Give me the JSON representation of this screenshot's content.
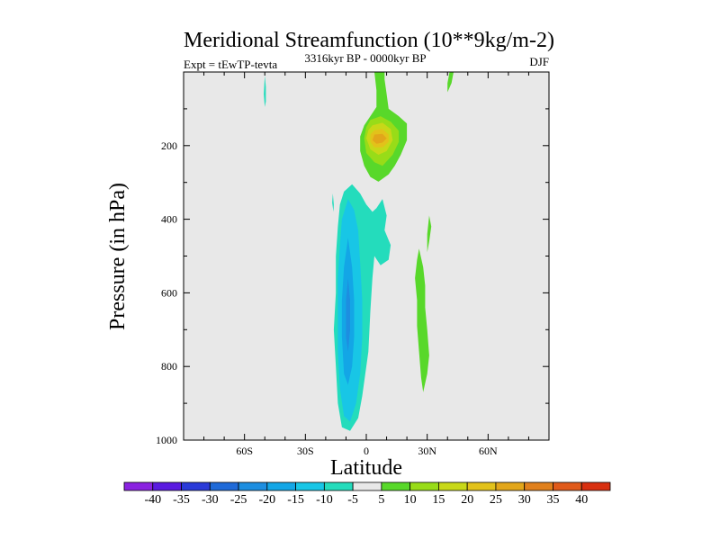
{
  "chart_data": {
    "type": "contour",
    "title": "Meridional Streamfunction (10**9kg/m-2)",
    "left_label": "Expt = tEwTP-tevta",
    "center_label": "3316kyr BP - 0000kyr BP",
    "right_label": "DJF",
    "xlabel": "Latitude",
    "ylabel": "Pressure (in hPa)",
    "xlim": [
      -90,
      90
    ],
    "ylim": [
      0,
      1000
    ],
    "y_inverted": true,
    "x_ticks": [
      {
        "value": -60,
        "label": "60S"
      },
      {
        "value": -30,
        "label": "30S"
      },
      {
        "value": 0,
        "label": "0"
      },
      {
        "value": 30,
        "label": "30N"
      },
      {
        "value": 60,
        "label": "60N"
      }
    ],
    "y_ticks": [
      {
        "value": 200,
        "label": "200"
      },
      {
        "value": 400,
        "label": "400"
      },
      {
        "value": 600,
        "label": "600"
      },
      {
        "value": 800,
        "label": "800"
      },
      {
        "value": 1000,
        "label": "1000"
      }
    ],
    "background_color": "#e8e8e8",
    "colorbar": {
      "levels": [
        -40,
        -35,
        -30,
        -25,
        -20,
        -15,
        -10,
        -5,
        5,
        10,
        15,
        20,
        25,
        30,
        35,
        40
      ],
      "level_labels": [
        "-40",
        "-35",
        "-30",
        "-25",
        "-20",
        "-15",
        "-10",
        "-5",
        "5",
        "10",
        "15",
        "20",
        "25",
        "30",
        "35",
        "40"
      ],
      "colors": [
        "#8a22e0",
        "#5a1ae0",
        "#2a3ad8",
        "#1f6ad8",
        "#1d8ee0",
        "#13a6e6",
        "#18c6e6",
        "#24dcbc",
        "#e8e8e8",
        "#58d82a",
        "#98dc18",
        "#c8d818",
        "#e2c21a",
        "#e2a61a",
        "#e0801c",
        "#e05a1a",
        "#d83010"
      ]
    },
    "contours": [
      {
        "name": "neg-cell-outer",
        "level": -5,
        "color": "#24dcbc",
        "points": [
          [
            -7,
            305
          ],
          [
            -3,
            330
          ],
          [
            0,
            360
          ],
          [
            3,
            380
          ],
          [
            5,
            370
          ],
          [
            8,
            345
          ],
          [
            10,
            390
          ],
          [
            9,
            430
          ],
          [
            12,
            470
          ],
          [
            11,
            510
          ],
          [
            7,
            525
          ],
          [
            4,
            500
          ],
          [
            3,
            560
          ],
          [
            2,
            650
          ],
          [
            1,
            760
          ],
          [
            -2,
            880
          ],
          [
            -4,
            940
          ],
          [
            -8,
            975
          ],
          [
            -12,
            965
          ],
          [
            -14,
            900
          ],
          [
            -15,
            800
          ],
          [
            -16,
            700
          ],
          [
            -15,
            600
          ],
          [
            -15,
            500
          ],
          [
            -14,
            420
          ],
          [
            -13,
            360
          ],
          [
            -11,
            325
          ]
        ]
      },
      {
        "name": "neg-cell-10",
        "level": -10,
        "color": "#18c6e6",
        "points": [
          [
            -9,
            345
          ],
          [
            -6,
            375
          ],
          [
            -4,
            430
          ],
          [
            -3,
            520
          ],
          [
            -2,
            620
          ],
          [
            -2,
            720
          ],
          [
            -3,
            820
          ],
          [
            -5,
            900
          ],
          [
            -8,
            950
          ],
          [
            -11,
            935
          ],
          [
            -13,
            860
          ],
          [
            -14,
            760
          ],
          [
            -14,
            660
          ],
          [
            -14,
            560
          ],
          [
            -13,
            470
          ],
          [
            -12,
            400
          ]
        ]
      },
      {
        "name": "neg-cell-15",
        "level": -15,
        "color": "#13a6e6",
        "points": [
          [
            -9,
            450
          ],
          [
            -7,
            530
          ],
          [
            -6,
            620
          ],
          [
            -6,
            720
          ],
          [
            -7,
            800
          ],
          [
            -9,
            850
          ],
          [
            -11,
            820
          ],
          [
            -12,
            720
          ],
          [
            -12,
            620
          ],
          [
            -11,
            530
          ]
        ]
      },
      {
        "name": "neg-cell-20",
        "level": -20,
        "color": "#1d8ee0",
        "points": [
          [
            -9,
            560
          ],
          [
            -8,
            620
          ],
          [
            -8,
            700
          ],
          [
            -9,
            760
          ],
          [
            -10,
            720
          ],
          [
            -10,
            620
          ]
        ]
      },
      {
        "name": "neg-patch-sh",
        "level": -5,
        "color": "#24dcbc",
        "points": [
          [
            -50,
            10
          ],
          [
            -49.5,
            40
          ],
          [
            -49.5,
            80
          ],
          [
            -50,
            95
          ],
          [
            -50.5,
            60
          ]
        ]
      },
      {
        "name": "neg-patch-small",
        "level": -5,
        "color": "#24dcbc",
        "points": [
          [
            -16.5,
            330
          ],
          [
            -16,
            360
          ],
          [
            -16.2,
            380
          ],
          [
            -16.8,
            355
          ]
        ]
      },
      {
        "name": "pos-upper-outer",
        "level": 5,
        "color": "#58d82a",
        "points": [
          [
            4,
            0
          ],
          [
            9,
            0
          ],
          [
            9,
            20
          ],
          [
            10,
            60
          ],
          [
            11,
            100
          ],
          [
            16,
            120
          ],
          [
            20,
            140
          ],
          [
            20,
            185
          ],
          [
            17,
            225
          ],
          [
            14,
            255
          ],
          [
            11,
            278
          ],
          [
            6,
            298
          ],
          [
            2,
            285
          ],
          [
            -1,
            255
          ],
          [
            -3,
            215
          ],
          [
            -3,
            175
          ],
          [
            -1,
            145
          ],
          [
            2,
            120
          ],
          [
            5,
            95
          ],
          [
            5,
            50
          ]
        ]
      },
      {
        "name": "pos-upper-10",
        "level": 10,
        "color": "#98dc18",
        "points": [
          [
            2,
            130
          ],
          [
            7,
            120
          ],
          [
            12,
            135
          ],
          [
            16,
            160
          ],
          [
            16,
            190
          ],
          [
            13,
            225
          ],
          [
            8,
            255
          ],
          [
            4,
            245
          ],
          [
            0,
            220
          ],
          [
            -1,
            180
          ],
          [
            0,
            150
          ]
        ]
      },
      {
        "name": "pos-upper-15",
        "level": 15,
        "color": "#c8d818",
        "points": [
          [
            3,
            145
          ],
          [
            8,
            138
          ],
          [
            12,
            155
          ],
          [
            13,
            185
          ],
          [
            10,
            215
          ],
          [
            6,
            225
          ],
          [
            2,
            210
          ],
          [
            0,
            180
          ],
          [
            1,
            158
          ]
        ]
      },
      {
        "name": "pos-upper-20",
        "level": 20,
        "color": "#e2c21a",
        "points": [
          [
            4,
            158
          ],
          [
            8,
            155
          ],
          [
            11,
            170
          ],
          [
            11,
            190
          ],
          [
            8,
            205
          ],
          [
            4,
            205
          ],
          [
            2,
            190
          ],
          [
            2,
            170
          ]
        ]
      },
      {
        "name": "pos-upper-25",
        "level": 25,
        "color": "#e2a61a",
        "points": [
          [
            4,
            170
          ],
          [
            8,
            168
          ],
          [
            10,
            180
          ],
          [
            8,
            192
          ],
          [
            5,
            195
          ],
          [
            3,
            185
          ]
        ]
      },
      {
        "name": "pos-nh-cell",
        "level": 5,
        "color": "#58d82a",
        "points": [
          [
            26,
            480
          ],
          [
            28,
            530
          ],
          [
            29,
            580
          ],
          [
            29,
            640
          ],
          [
            30,
            700
          ],
          [
            31,
            770
          ],
          [
            30,
            820
          ],
          [
            28,
            870
          ],
          [
            27,
            830
          ],
          [
            26,
            760
          ],
          [
            25,
            690
          ],
          [
            25,
            620
          ],
          [
            24,
            560
          ],
          [
            25,
            510
          ]
        ]
      },
      {
        "name": "pos-nh-strip",
        "level": 5,
        "color": "#58d82a",
        "points": [
          [
            31,
            390
          ],
          [
            32,
            420
          ],
          [
            31,
            460
          ],
          [
            30,
            490
          ],
          [
            30,
            440
          ]
        ]
      },
      {
        "name": "pos-nh-top",
        "level": 5,
        "color": "#58d82a",
        "points": [
          [
            41,
            0
          ],
          [
            43,
            0
          ],
          [
            42,
            30
          ],
          [
            40,
            55
          ],
          [
            40,
            30
          ]
        ]
      }
    ]
  }
}
